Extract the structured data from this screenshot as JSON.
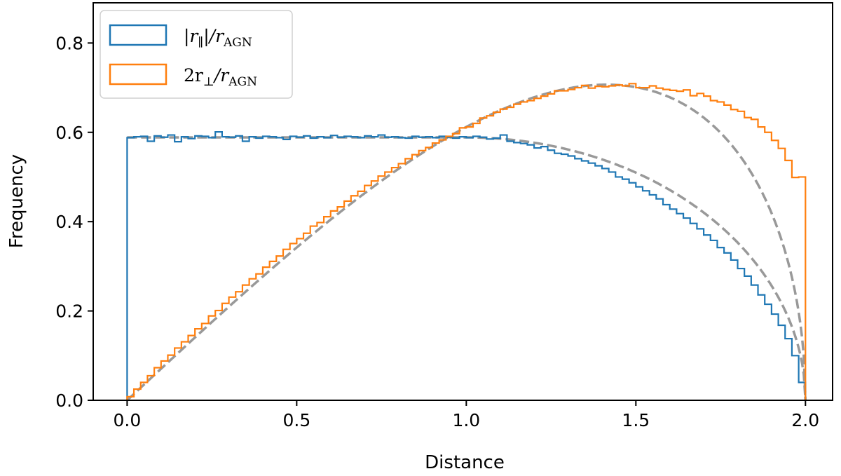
{
  "chart_data": {
    "type": "histogram",
    "title": "",
    "xlabel": "Distance",
    "ylabel": "Frequency",
    "xlim": [
      -0.1,
      2.08
    ],
    "ylim": [
      0.0,
      0.89
    ],
    "x_ticks": [
      0.0,
      0.5,
      1.0,
      1.5,
      2.0
    ],
    "x_tick_labels": [
      "0.0",
      "0.5",
      "1.0",
      "1.5",
      "2.0"
    ],
    "y_ticks": [
      0.0,
      0.2,
      0.4,
      0.6,
      0.8
    ],
    "y_tick_labels": [
      "0.0",
      "0.2",
      "0.4",
      "0.6",
      "0.8"
    ],
    "grid": false,
    "legend_position": "top-left",
    "bins": {
      "start": 0.0,
      "end": 2.0,
      "count": 100
    },
    "series": [
      {
        "name": "parallel",
        "legend_main": "|r",
        "legend_sub": "∥",
        "legend_tail": "|/r",
        "legend_tail_sub": "AGN",
        "color": "#1f77b4",
        "style": "step",
        "values": [
          0.588,
          0.59,
          0.591,
          0.58,
          0.592,
          0.589,
          0.594,
          0.579,
          0.59,
          0.586,
          0.592,
          0.591,
          0.588,
          0.601,
          0.59,
          0.589,
          0.592,
          0.58,
          0.59,
          0.587,
          0.591,
          0.59,
          0.588,
          0.584,
          0.591,
          0.589,
          0.592,
          0.587,
          0.59,
          0.588,
          0.593,
          0.589,
          0.591,
          0.59,
          0.588,
          0.592,
          0.59,
          0.594,
          0.589,
          0.59,
          0.588,
          0.587,
          0.591,
          0.589,
          0.59,
          0.588,
          0.591,
          0.589,
          0.587,
          0.59,
          0.588,
          0.591,
          0.589,
          0.585,
          0.587,
          0.594,
          0.58,
          0.577,
          0.575,
          0.572,
          0.565,
          0.568,
          0.56,
          0.553,
          0.551,
          0.547,
          0.541,
          0.536,
          0.531,
          0.525,
          0.519,
          0.511,
          0.5,
          0.495,
          0.487,
          0.478,
          0.469,
          0.46,
          0.451,
          0.438,
          0.428,
          0.418,
          0.408,
          0.396,
          0.384,
          0.37,
          0.358,
          0.342,
          0.33,
          0.314,
          0.295,
          0.278,
          0.258,
          0.236,
          0.215,
          0.193,
          0.168,
          0.138,
          0.1,
          0.04
        ]
      },
      {
        "name": "perpendicular",
        "legend_main": "2r",
        "legend_sub": "⊥",
        "legend_tail": "/r",
        "legend_tail_sub": "AGN",
        "color": "#ff7f0e",
        "style": "step",
        "values": [
          0.008,
          0.025,
          0.04,
          0.055,
          0.073,
          0.088,
          0.101,
          0.117,
          0.131,
          0.145,
          0.16,
          0.172,
          0.189,
          0.201,
          0.217,
          0.231,
          0.243,
          0.258,
          0.272,
          0.283,
          0.298,
          0.311,
          0.323,
          0.338,
          0.351,
          0.362,
          0.374,
          0.39,
          0.398,
          0.411,
          0.424,
          0.433,
          0.446,
          0.458,
          0.468,
          0.481,
          0.491,
          0.502,
          0.511,
          0.521,
          0.53,
          0.541,
          0.55,
          0.559,
          0.566,
          0.576,
          0.583,
          0.591,
          0.597,
          0.61,
          0.612,
          0.62,
          0.632,
          0.637,
          0.645,
          0.652,
          0.656,
          0.663,
          0.668,
          0.671,
          0.676,
          0.681,
          0.686,
          0.693,
          0.693,
          0.696,
          0.7,
          0.705,
          0.699,
          0.703,
          0.702,
          0.704,
          0.706,
          0.704,
          0.709,
          0.7,
          0.7,
          0.704,
          0.699,
          0.696,
          0.694,
          0.692,
          0.695,
          0.682,
          0.687,
          0.681,
          0.671,
          0.668,
          0.661,
          0.651,
          0.647,
          0.633,
          0.629,
          0.612,
          0.6,
          0.582,
          0.564,
          0.537,
          0.499,
          0.5
        ]
      },
      {
        "name": "parallel-fit",
        "color": "#999999",
        "style": "dashed",
        "fit": "parallel"
      },
      {
        "name": "perpendicular-fit",
        "color": "#999999",
        "style": "dashed",
        "fit": "perpendicular"
      }
    ]
  }
}
